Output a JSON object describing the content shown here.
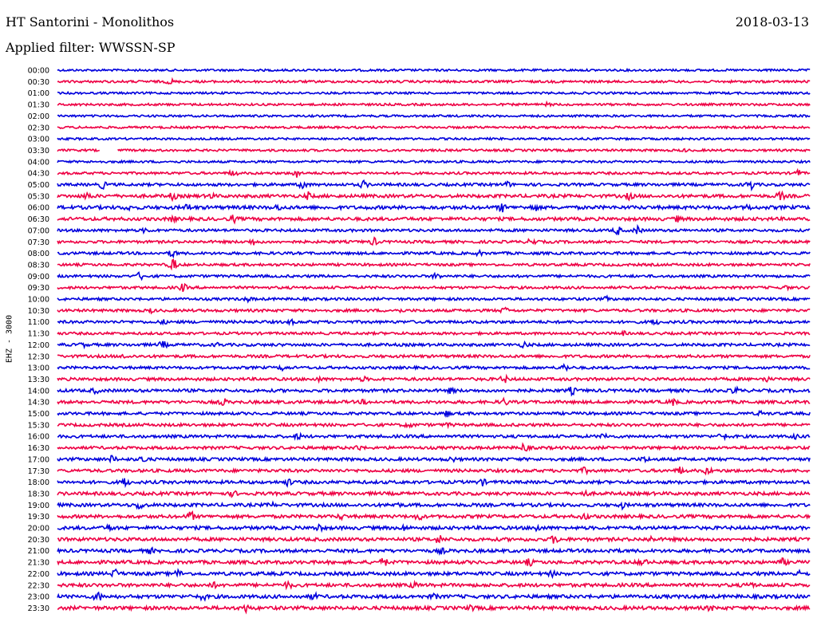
{
  "header": {
    "station": "HT Santorini - Monolithos",
    "date": "2018-03-13",
    "filter_label": "Applied filter: WWSSN-SP"
  },
  "chart_data": {
    "type": "line",
    "title": "HT Santorini - Monolithos",
    "ylabel": "EHZ - 3000",
    "tick_labels": [
      "00:00",
      "00:30",
      "01:00",
      "01:30",
      "02:00",
      "02:30",
      "03:00",
      "03:30",
      "04:00",
      "04:30",
      "05:00",
      "05:30",
      "06:00",
      "06:30",
      "07:00",
      "07:30",
      "08:00",
      "08:30",
      "09:00",
      "09:30",
      "10:00",
      "10:30",
      "11:00",
      "11:30",
      "12:00",
      "12:30",
      "13:00",
      "13:30",
      "14:00",
      "14:30",
      "15:00",
      "15:30",
      "16:00",
      "16:30",
      "17:00",
      "17:30",
      "18:00",
      "18:30",
      "19:00",
      "19:30",
      "20:00",
      "20:30",
      "21:00",
      "21:30",
      "22:00",
      "22:30",
      "23:00",
      "23:30"
    ],
    "trace_colors": [
      "#0000dd",
      "#ee0044"
    ],
    "x_range": [
      0,
      30
    ],
    "x_unit": "minutes",
    "grid": false,
    "legend": "none",
    "traces": [
      {
        "noise": 0.6,
        "events": []
      },
      {
        "noise": 0.8,
        "events": [
          [
            4.5,
            3.5
          ]
        ]
      },
      {
        "noise": 0.6,
        "events": []
      },
      {
        "noise": 0.7,
        "events": [
          [
            19.5,
            2
          ]
        ]
      },
      {
        "noise": 0.6,
        "events": []
      },
      {
        "noise": 0.7,
        "events": []
      },
      {
        "noise": 0.6,
        "events": []
      },
      {
        "noise": 0.7,
        "events": [
          [
            25,
            1.5
          ]
        ],
        "gaps": [
          [
            1.7,
            2.4
          ]
        ]
      },
      {
        "noise": 0.7,
        "events": []
      },
      {
        "noise": 0.9,
        "events": [
          [
            7,
            4
          ],
          [
            9.5,
            6
          ],
          [
            29.5,
            4
          ]
        ]
      },
      {
        "noise": 1.2,
        "events": [
          [
            1.8,
            5
          ],
          [
            9.8,
            6
          ],
          [
            12.2,
            5
          ],
          [
            17.9,
            4
          ],
          [
            27.6,
            7
          ]
        ]
      },
      {
        "noise": 1.6,
        "events": [
          [
            1.2,
            5
          ],
          [
            4.6,
            5
          ],
          [
            6.1,
            4
          ],
          [
            10,
            5
          ],
          [
            22.8,
            5
          ],
          [
            28.8,
            6
          ]
        ]
      },
      {
        "noise": 1.8,
        "events": [
          [
            2.8,
            4
          ],
          [
            5.2,
            5
          ],
          [
            8.8,
            4
          ],
          [
            17.7,
            6
          ],
          [
            19,
            5
          ],
          [
            27.5,
            4
          ]
        ]
      },
      {
        "noise": 1.6,
        "events": [
          [
            4.6,
            4
          ],
          [
            7,
            5
          ],
          [
            24.7,
            4
          ]
        ]
      },
      {
        "noise": 1.1,
        "events": [
          [
            3.5,
            3
          ],
          [
            22.3,
            6
          ],
          [
            23.1,
            5
          ]
        ]
      },
      {
        "noise": 1.1,
        "events": [
          [
            7.8,
            4
          ],
          [
            12.6,
            5
          ],
          [
            18.9,
            5
          ]
        ]
      },
      {
        "noise": 1.1,
        "events": [
          [
            4.6,
            5
          ],
          [
            16.8,
            3
          ]
        ]
      },
      {
        "noise": 1.0,
        "events": [
          [
            4.6,
            8
          ]
        ]
      },
      {
        "noise": 1.0,
        "events": [
          [
            3.3,
            5
          ],
          [
            15.1,
            4
          ]
        ]
      },
      {
        "noise": 1.0,
        "events": [
          [
            5,
            5
          ],
          [
            29,
            3
          ]
        ]
      },
      {
        "noise": 1.0,
        "events": [
          [
            7.6,
            3
          ],
          [
            21.9,
            3
          ]
        ]
      },
      {
        "noise": 1.1,
        "events": [
          [
            3.7,
            3
          ],
          [
            13.6,
            3
          ],
          [
            17.8,
            4
          ]
        ]
      },
      {
        "noise": 1.2,
        "events": [
          [
            4.2,
            3
          ],
          [
            9.3,
            3
          ],
          [
            23.8,
            4
          ]
        ]
      },
      {
        "noise": 1.0,
        "events": [
          [
            22.5,
            3
          ]
        ]
      },
      {
        "noise": 1.2,
        "events": [
          [
            1,
            3
          ],
          [
            4.2,
            5
          ],
          [
            6.4,
            3
          ],
          [
            18.6,
            4
          ]
        ]
      },
      {
        "noise": 1.2,
        "events": [
          [
            2.7,
            3
          ]
        ]
      },
      {
        "noise": 1.1,
        "events": [
          [
            9,
            4
          ],
          [
            20.2,
            5
          ]
        ]
      },
      {
        "noise": 1.3,
        "events": [
          [
            10.4,
            3
          ],
          [
            12.2,
            3
          ],
          [
            17.8,
            5
          ],
          [
            28.2,
            4
          ]
        ]
      },
      {
        "noise": 1.4,
        "events": [
          [
            1.5,
            4
          ],
          [
            15.7,
            4
          ],
          [
            20.5,
            5
          ],
          [
            27,
            5
          ]
        ]
      },
      {
        "noise": 1.4,
        "events": [
          [
            6.6,
            5
          ],
          [
            12.2,
            3
          ],
          [
            17.8,
            5
          ],
          [
            24.5,
            5
          ]
        ]
      },
      {
        "noise": 1.2,
        "events": [
          [
            15.5,
            4
          ],
          [
            28,
            3
          ]
        ]
      },
      {
        "noise": 1.3,
        "events": [
          [
            14,
            4
          ],
          [
            15.6,
            3
          ]
        ]
      },
      {
        "noise": 1.3,
        "events": [
          [
            9.6,
            4
          ],
          [
            21.8,
            4
          ],
          [
            26.5,
            5
          ],
          [
            29.4,
            3
          ]
        ]
      },
      {
        "noise": 1.3,
        "events": [
          [
            12,
            4
          ],
          [
            18.6,
            6
          ]
        ]
      },
      {
        "noise": 1.4,
        "events": [
          [
            2.2,
            5
          ],
          [
            3.4,
            5
          ],
          [
            15.7,
            4
          ],
          [
            23.4,
            4
          ]
        ]
      },
      {
        "noise": 1.4,
        "events": [
          [
            21,
            4
          ],
          [
            24.8,
            5
          ],
          [
            25.9,
            5
          ]
        ]
      },
      {
        "noise": 1.5,
        "events": [
          [
            2.7,
            6
          ],
          [
            9.2,
            5
          ],
          [
            16.9,
            5
          ]
        ]
      },
      {
        "noise": 1.6,
        "events": [
          [
            7,
            4
          ],
          [
            21,
            4
          ],
          [
            31.5,
            4
          ]
        ]
      },
      {
        "noise": 1.6,
        "events": [
          [
            3.3,
            7
          ],
          [
            8.5,
            4
          ],
          [
            13.5,
            4
          ],
          [
            22.5,
            4
          ]
        ]
      },
      {
        "noise": 1.6,
        "events": [
          [
            5.3,
            7
          ],
          [
            11.3,
            4
          ],
          [
            14.4,
            5
          ],
          [
            21,
            5
          ]
        ]
      },
      {
        "noise": 1.7,
        "events": [
          [
            2.1,
            5
          ],
          [
            10.4,
            5
          ],
          [
            13.8,
            4
          ],
          [
            19.1,
            5
          ]
        ]
      },
      {
        "noise": 1.7,
        "events": [
          [
            15.2,
            6
          ],
          [
            19.8,
            6
          ],
          [
            23.6,
            4
          ]
        ]
      },
      {
        "noise": 1.6,
        "events": [
          [
            3.7,
            4
          ],
          [
            15.3,
            4
          ],
          [
            22.1,
            4
          ]
        ]
      },
      {
        "noise": 1.7,
        "events": [
          [
            13,
            6
          ],
          [
            18.8,
            5
          ],
          [
            23.3,
            7
          ],
          [
            28.9,
            5
          ]
        ]
      },
      {
        "noise": 1.7,
        "events": [
          [
            2.3,
            6
          ],
          [
            4.8,
            5
          ],
          [
            19.7,
            4
          ],
          [
            29.5,
            4
          ]
        ]
      },
      {
        "noise": 1.7,
        "events": [
          [
            6.2,
            4
          ],
          [
            9.2,
            5
          ],
          [
            14.2,
            4
          ],
          [
            27.6,
            5
          ]
        ]
      },
      {
        "noise": 1.8,
        "events": [
          [
            1.6,
            7
          ],
          [
            5.8,
            5
          ],
          [
            10.2,
            5
          ],
          [
            15,
            4
          ]
        ]
      },
      {
        "noise": 1.8,
        "events": [
          [
            7.5,
            6
          ],
          [
            16.5,
            4
          ],
          [
            26,
            4
          ]
        ]
      }
    ]
  }
}
